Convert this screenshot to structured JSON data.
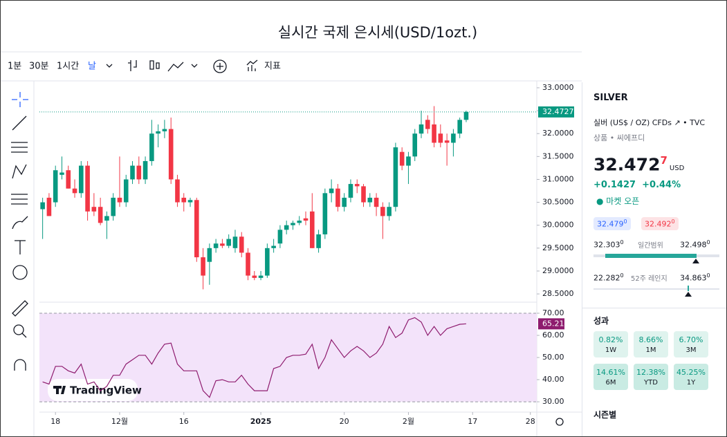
{
  "header": {
    "title": "실시간 국제 은시세(USD/1ozt.)"
  },
  "toolbar": {
    "intervals": [
      "1분",
      "30분",
      "1시간",
      "날"
    ],
    "indicators": "지표"
  },
  "chart_data": [
    {
      "type": "candlestick",
      "watermark": "TradingView",
      "up_color": "#089981",
      "down_color": "#f23645",
      "open": [
        30.35,
        30.6,
        30.5,
        31.1,
        31.2,
        30.8,
        30.7,
        31.3,
        30.4,
        30.4,
        30.1,
        30.2,
        30.6,
        30.5,
        31.0,
        31.3,
        31.0,
        31.4,
        32.0,
        32.05,
        32.1,
        31.0,
        30.6,
        30.5,
        30.55,
        29.3,
        29.2,
        29.5,
        29.6,
        29.55,
        29.5,
        29.75,
        29.4,
        28.9,
        28.85,
        28.9,
        29.5,
        29.6,
        29.9,
        30.0,
        30.05,
        30.15,
        30.3,
        29.5,
        29.8,
        30.7,
        30.8,
        30.4,
        30.6,
        30.9,
        30.85,
        30.5,
        30.6,
        30.4,
        30.2,
        30.4,
        31.6,
        31.3,
        31.5,
        32.0,
        32.3,
        32.2,
        32.0,
        31.85,
        31.8,
        32.0,
        32.3
      ],
      "high": [
        30.6,
        30.7,
        31.3,
        31.5,
        31.3,
        31.0,
        31.4,
        31.4,
        30.7,
        30.6,
        30.3,
        30.7,
        31.5,
        31.1,
        31.4,
        31.5,
        31.5,
        32.3,
        32.2,
        32.3,
        32.35,
        31.1,
        30.7,
        30.6,
        30.6,
        29.5,
        29.6,
        29.7,
        29.7,
        29.8,
        29.9,
        29.85,
        29.5,
        29.0,
        29.0,
        29.6,
        29.7,
        30.0,
        30.1,
        30.1,
        30.2,
        30.3,
        30.7,
        29.9,
        30.8,
        31.0,
        30.9,
        30.7,
        31.0,
        31.0,
        30.9,
        30.7,
        30.7,
        30.5,
        30.5,
        31.8,
        31.7,
        31.6,
        32.1,
        32.5,
        32.4,
        32.6,
        32.2,
        32.0,
        32.1,
        32.35,
        32.5
      ],
      "low": [
        29.7,
        30.2,
        30.4,
        31.0,
        30.8,
        30.6,
        30.6,
        30.1,
        30.2,
        30.0,
        29.7,
        30.1,
        30.4,
        30.4,
        30.9,
        30.9,
        30.9,
        31.3,
        31.7,
        31.9,
        30.9,
        30.4,
        30.3,
        30.4,
        29.2,
        28.6,
        28.7,
        29.4,
        29.5,
        29.5,
        29.4,
        29.3,
        28.8,
        28.8,
        28.8,
        28.85,
        29.4,
        29.5,
        29.8,
        29.9,
        30.0,
        30.0,
        29.5,
        29.4,
        29.7,
        30.5,
        30.3,
        30.3,
        30.5,
        30.7,
        30.4,
        30.4,
        30.2,
        29.7,
        30.1,
        30.3,
        31.2,
        30.9,
        31.4,
        31.9,
        32.0,
        31.7,
        31.7,
        31.3,
        31.5,
        31.9,
        32.25
      ],
      "close": [
        30.5,
        30.2,
        31.2,
        31.15,
        30.8,
        30.7,
        31.3,
        30.3,
        30.3,
        30.05,
        30.2,
        30.6,
        30.5,
        31.0,
        31.3,
        31.0,
        31.4,
        32.0,
        32.05,
        32.1,
        31.0,
        30.5,
        30.5,
        30.55,
        29.3,
        28.9,
        29.5,
        29.6,
        29.55,
        29.7,
        29.75,
        29.4,
        28.9,
        28.85,
        28.9,
        29.5,
        29.55,
        29.9,
        30.0,
        30.05,
        30.1,
        30.1,
        29.5,
        29.8,
        30.7,
        30.8,
        30.4,
        30.6,
        30.9,
        30.85,
        30.5,
        30.6,
        30.4,
        30.2,
        30.4,
        31.7,
        31.3,
        31.5,
        32.0,
        32.2,
        32.1,
        31.8,
        31.8,
        31.8,
        32.0,
        32.3,
        32.4727
      ],
      "xlim": [
        -0.5,
        77
      ],
      "xticks": [
        {
          "value": 2,
          "label": "18"
        },
        {
          "value": 12,
          "label": "12월"
        },
        {
          "value": 22,
          "label": "16"
        },
        {
          "value": 34,
          "label": "2025"
        },
        {
          "value": 47,
          "label": "20"
        },
        {
          "value": 57,
          "label": "2월"
        },
        {
          "value": 67,
          "label": "17"
        },
        {
          "value": 76,
          "label": "28"
        }
      ],
      "ylim": [
        28.32,
        33.12
      ],
      "yticks": [
        {
          "value": 33,
          "label": "33.0000"
        },
        {
          "value": 32.5,
          "label": "32.5000"
        },
        {
          "value": 32,
          "label": "32.0000"
        },
        {
          "value": 31.5,
          "label": "31.5000"
        },
        {
          "value": 31,
          "label": "31.0000"
        },
        {
          "value": 30.5,
          "label": "30.5000"
        },
        {
          "value": 30,
          "label": "30.0000"
        },
        {
          "value": 29.5,
          "label": "29.5000"
        },
        {
          "value": 29,
          "label": "29.0000"
        },
        {
          "value": 28.5,
          "label": "28.5000"
        }
      ]
    },
    {
      "type": "line",
      "color": "#8e1b6e",
      "band_color": "#f3e3fa",
      "values": [
        39,
        38,
        46,
        46,
        44,
        43,
        47,
        38,
        39,
        35,
        37,
        42,
        42,
        47,
        49,
        51,
        51,
        47,
        52,
        56,
        56.5,
        47,
        44,
        44,
        44,
        35,
        32,
        39.5,
        40,
        39,
        39,
        42,
        38,
        35,
        35,
        35,
        45,
        46,
        50,
        51,
        51,
        51.5,
        56,
        45,
        50,
        58,
        54,
        50,
        53,
        55,
        53,
        50,
        52,
        56,
        64,
        59,
        61,
        67,
        68,
        66,
        60,
        64,
        60,
        63,
        64,
        65,
        65.21
      ],
      "ylim": [
        26.9,
        75
      ],
      "yticks": [
        {
          "value": 70,
          "label": "70.00"
        },
        {
          "value": 60,
          "label": "60.00"
        },
        {
          "value": 50,
          "label": "50.00"
        },
        {
          "value": 40,
          "label": "40.00"
        },
        {
          "value": 30,
          "label": "30.00"
        }
      ]
    }
  ],
  "sidebar": {
    "symbol": "SILVER",
    "description": "실버 (US$ / OZ) CFDs",
    "exchange": "TVC",
    "category": "상품",
    "subcategory": "씨에프디",
    "price": "32.472",
    "price_tail": "7",
    "currency": "USD",
    "change": "+0.1427",
    "change_pct": "+0.44%",
    "status": "마켓 오픈",
    "bid": "32.479",
    "bid_tail": "0",
    "ask": "32.492",
    "ask_tail": "0",
    "day_low": "32.303",
    "day_low_tail": "0",
    "day_label": "일간범위",
    "day_high": "32.498",
    "day_high_tail": "0",
    "year_low": "22.282",
    "year_low_tail": "0",
    "year_label": "52주 레인지",
    "year_high": "34.863",
    "year_high_tail": "0",
    "performance_title": "성과",
    "performance": [
      {
        "value": "0.82%",
        "period": "1W"
      },
      {
        "value": "8.66%",
        "period": "1M"
      },
      {
        "value": "6.70%",
        "period": "3M"
      },
      {
        "value": "14.61%",
        "period": "6M"
      },
      {
        "value": "12.38%",
        "period": "YTD"
      },
      {
        "value": "45.25%",
        "period": "1Y"
      }
    ],
    "seasonal_title": "시즌별"
  }
}
